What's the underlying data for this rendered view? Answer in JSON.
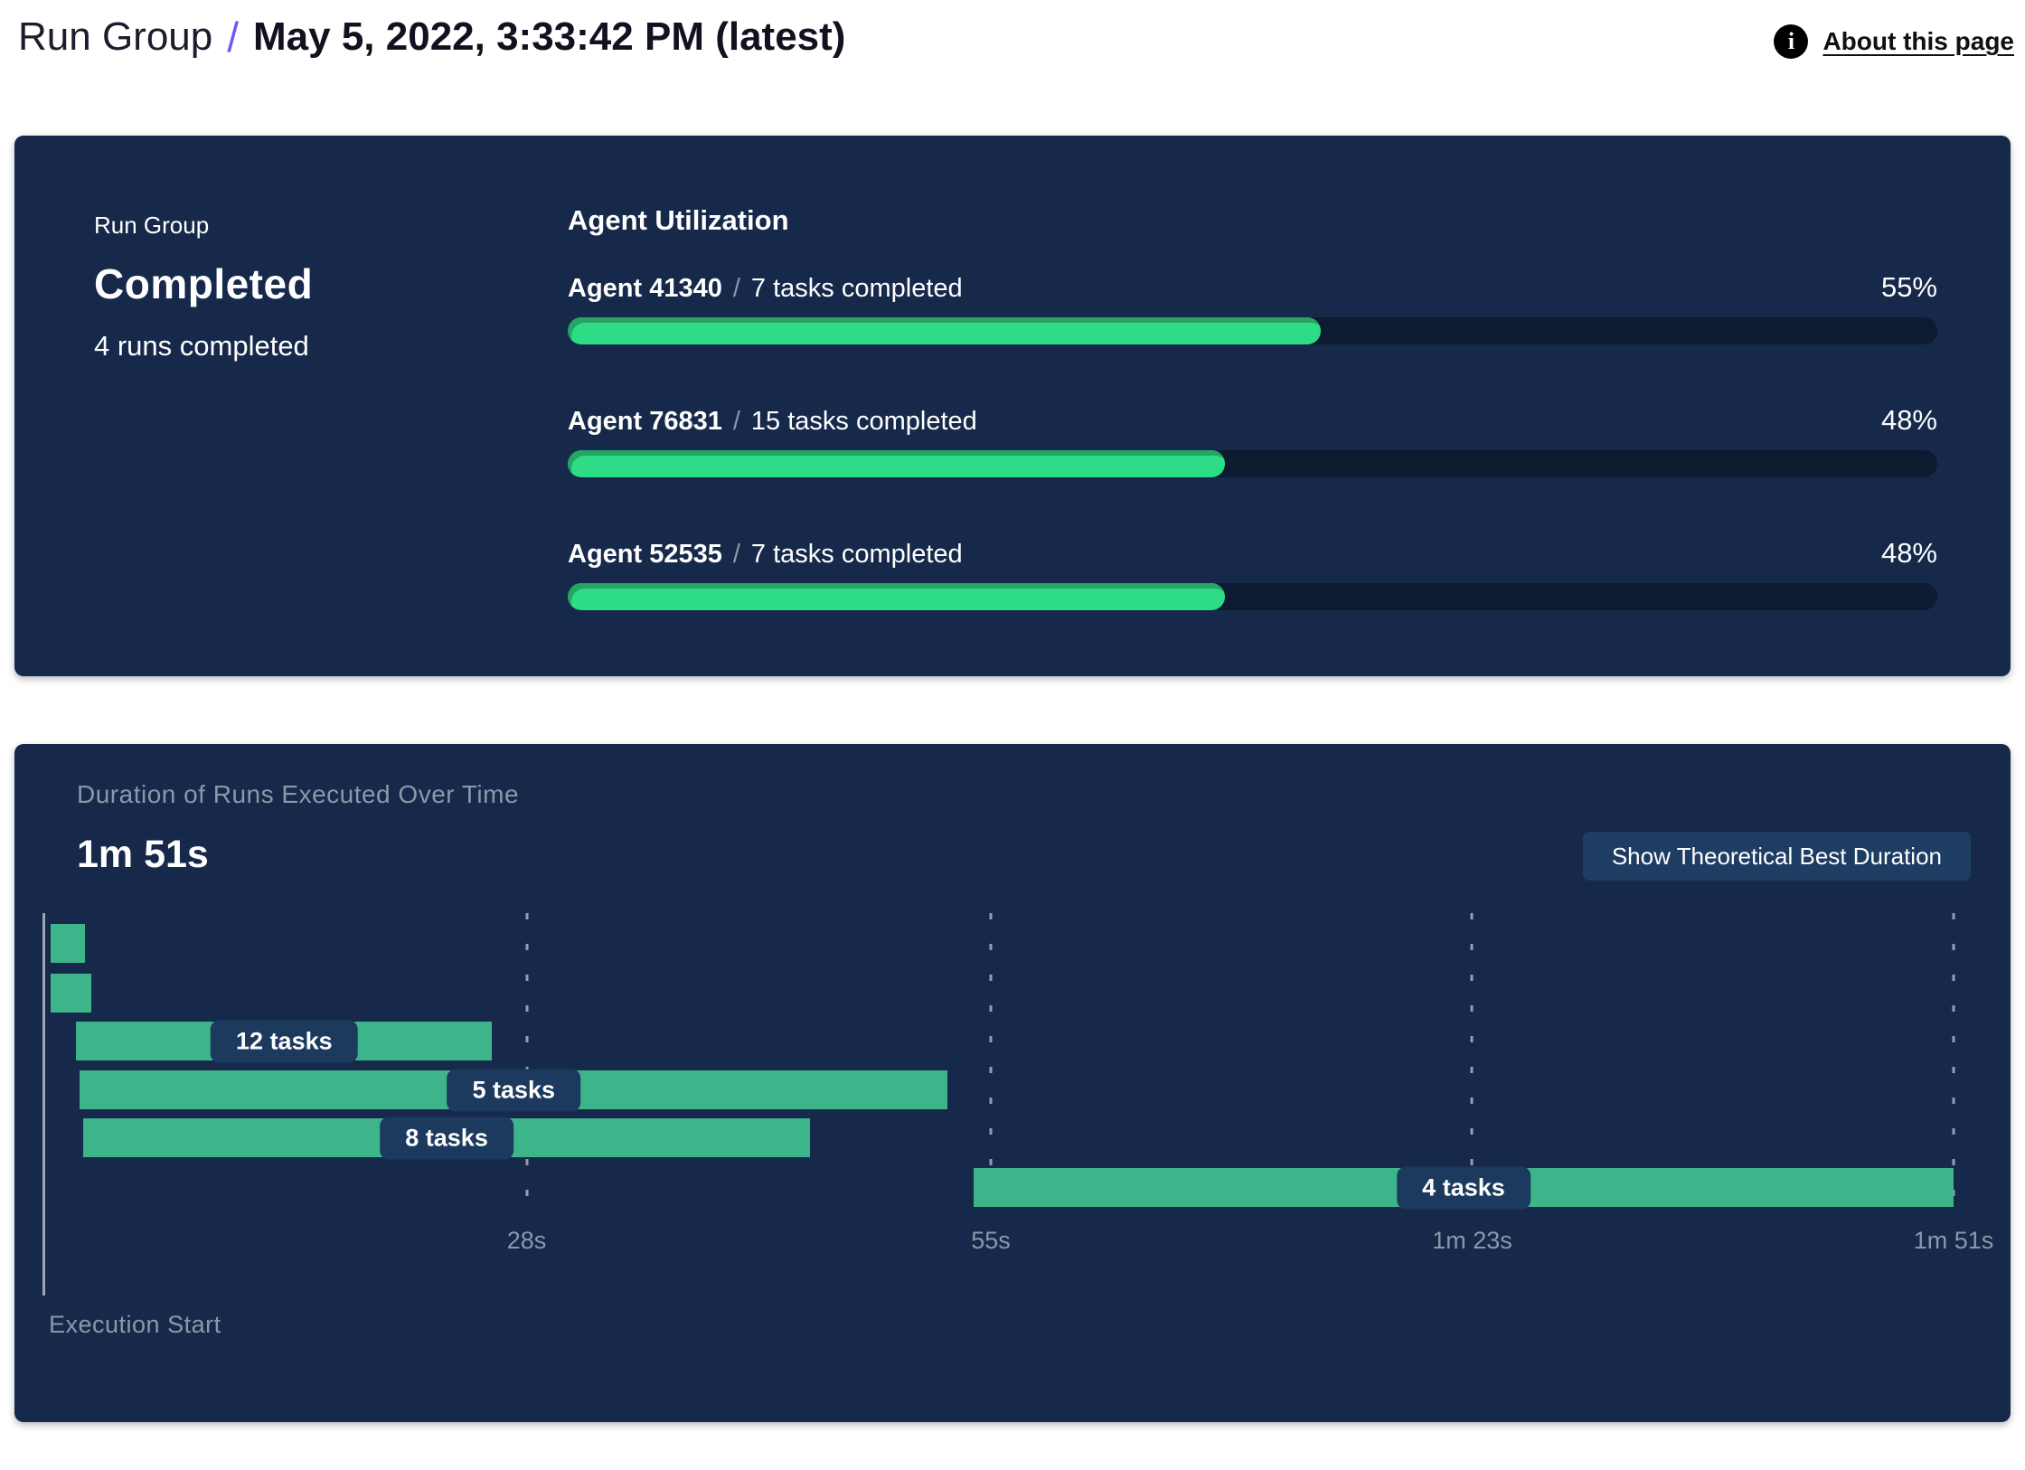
{
  "header": {
    "breadcrumb_root": "Run Group",
    "breadcrumb_separator": "/",
    "title": "May 5, 2022, 3:33:42 PM (latest)",
    "about_link_label": "About this page",
    "info_icon_glyph": "i"
  },
  "run_group_panel": {
    "label": "Run Group",
    "status": "Completed",
    "subtitle": "4 runs completed"
  },
  "agent_utilization": {
    "title": "Agent Utilization",
    "separator": "/",
    "agents": [
      {
        "name": "Agent 41340",
        "tasks": "7 tasks completed",
        "percent": 55,
        "percent_label": "55%"
      },
      {
        "name": "Agent 76831",
        "tasks": "15 tasks completed",
        "percent": 48,
        "percent_label": "48%"
      },
      {
        "name": "Agent 52535",
        "tasks": "7 tasks completed",
        "percent": 48,
        "percent_label": "48%"
      }
    ]
  },
  "duration_panel": {
    "subtitle": "Duration of Runs Executed Over Time",
    "total_duration": "1m 51s",
    "button_label": "Show Theoretical Best Duration",
    "axis_footer_label": "Execution Start"
  },
  "chart_data": {
    "type": "bar",
    "subtype": "gantt-timeline",
    "title": "Duration of Runs Executed Over Time",
    "total_duration_label": "1m 51s",
    "unit": "seconds",
    "xlim": [
      0,
      111
    ],
    "grid": true,
    "x_ticks": [
      {
        "value": 28,
        "label": "28s"
      },
      {
        "value": 55,
        "label": "55s"
      },
      {
        "value": 83,
        "label": "1m 23s"
      },
      {
        "value": 111,
        "label": "1m 51s"
      }
    ],
    "bars": [
      {
        "start": 0.3,
        "end": 2.3,
        "label": ""
      },
      {
        "start": 0.3,
        "end": 2.7,
        "label": ""
      },
      {
        "start": 1.8,
        "end": 26,
        "label": "12 tasks"
      },
      {
        "start": 2,
        "end": 52.5,
        "label": "5 tasks"
      },
      {
        "start": 2.2,
        "end": 44.5,
        "label": "8 tasks"
      },
      {
        "start": 54,
        "end": 111,
        "label": "4 tasks"
      }
    ],
    "xlabel": "Execution Start",
    "ylabel": ""
  },
  "colors": {
    "accent": "#6a5bf6",
    "panel_bg": "#16294a",
    "track": "#0d1b30",
    "fill": "#2edc85",
    "fill_edge": "#26a465",
    "gantt": "#3db489",
    "chip": "#1c3a5e",
    "button_bg": "#1e3d63",
    "muted": "#8b98aa"
  }
}
